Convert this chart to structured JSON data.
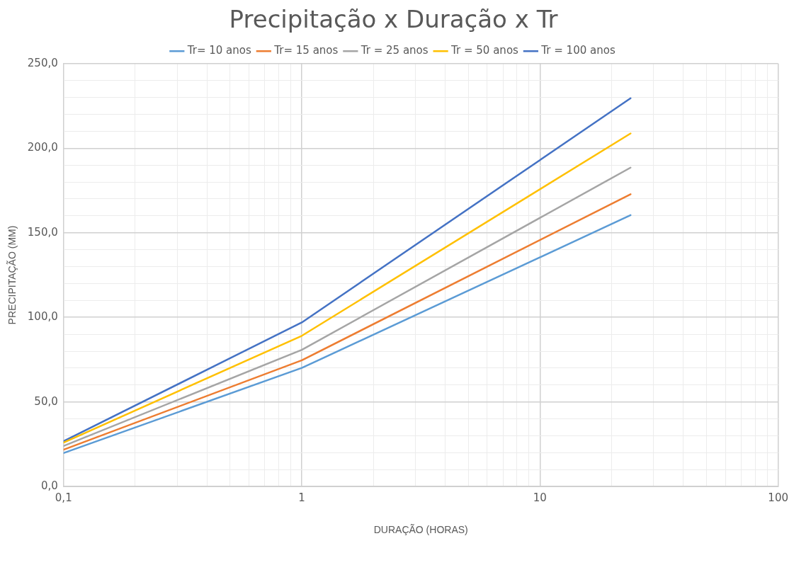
{
  "chart_data": {
    "type": "line",
    "title": "Precipitação x Duração x Tr",
    "xlabel": "DURAÇÃO (HORAS)",
    "ylabel": "PRECIPITAÇÃO (MM)",
    "x": [
      0.1,
      1,
      24
    ],
    "series": [
      {
        "name": "Tr= 10 anos",
        "color": "#5b9bd5",
        "values": [
          19.8,
          70.1,
          160.4
        ]
      },
      {
        "name": "Tr= 15 anos",
        "color": "#ed7d31",
        "values": [
          21.8,
          74.6,
          172.8
        ]
      },
      {
        "name": "Tr = 25 anos",
        "color": "#a5a5a5",
        "values": [
          24,
          80.8,
          188.5
        ]
      },
      {
        "name": "Tr = 50 anos",
        "color": "#ffc000",
        "values": [
          26,
          89.1,
          208.7
        ]
      },
      {
        "name": "Tr = 100 anos",
        "color": "#4472c4",
        "values": [
          26.8,
          97,
          229.5
        ]
      }
    ],
    "log": "x",
    "xlim": [
      0.1,
      100
    ],
    "ylim": [
      0,
      250
    ],
    "xticks": [
      {
        "value": 0.1,
        "label": "0,1"
      },
      {
        "value": 0.2,
        "label": null
      },
      {
        "value": 0.3,
        "label": null
      },
      {
        "value": 0.4,
        "label": null
      },
      {
        "value": 0.5,
        "label": null
      },
      {
        "value": 0.6,
        "label": null
      },
      {
        "value": 0.7,
        "label": null
      },
      {
        "value": 0.8,
        "label": null
      },
      {
        "value": 0.9,
        "label": null
      },
      1,
      {
        "value": 2,
        "label": null
      },
      {
        "value": 3,
        "label": null
      },
      {
        "value": 4,
        "label": null
      },
      {
        "value": 5,
        "label": null
      },
      {
        "value": 6,
        "label": null
      },
      {
        "value": 7,
        "label": null
      },
      {
        "value": 8,
        "label": null
      },
      {
        "value": 9,
        "label": null
      },
      10,
      {
        "value": 20,
        "label": null
      },
      {
        "value": 30,
        "label": null
      },
      {
        "value": 40,
        "label": null
      },
      {
        "value": 50,
        "label": null
      },
      {
        "value": 60,
        "label": null
      },
      {
        "value": 70,
        "label": null
      },
      {
        "value": 80,
        "label": null
      },
      {
        "value": 90,
        "label": null
      },
      100
    ],
    "yticks": [
      {
        "value": 0,
        "label": "0,0"
      },
      {
        "value": 10,
        "label": null
      },
      {
        "value": 20,
        "label": null
      },
      {
        "value": 30,
        "label": null
      },
      {
        "value": 40,
        "label": null
      },
      {
        "value": 50,
        "label": "50,0"
      },
      {
        "value": 60,
        "label": null
      },
      {
        "value": 70,
        "label": null
      },
      {
        "value": 80,
        "label": null
      },
      {
        "value": 90,
        "label": null
      },
      {
        "value": 100,
        "label": "100,0"
      },
      {
        "value": 110,
        "label": null
      },
      {
        "value": 120,
        "label": null
      },
      {
        "value": 130,
        "label": null
      },
      {
        "value": 140,
        "label": null
      },
      {
        "value": 150,
        "label": "150,0"
      },
      {
        "value": 160,
        "label": null
      },
      {
        "value": 170,
        "label": null
      },
      {
        "value": 180,
        "label": null
      },
      {
        "value": 190,
        "label": null
      },
      {
        "value": 200,
        "label": "200,0"
      },
      {
        "value": 210,
        "label": null
      },
      {
        "value": 220,
        "label": null
      },
      {
        "value": 230,
        "label": null
      },
      {
        "value": 240,
        "label": null
      },
      {
        "value": 250,
        "label": "250,0"
      }
    ],
    "grid": true,
    "legend": "top",
    "marker": "none",
    "line_style": "solid"
  }
}
